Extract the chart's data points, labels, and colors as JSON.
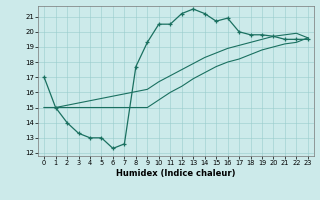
{
  "title": "",
  "xlabel": "Humidex (Indice chaleur)",
  "bg_color": "#cceaea",
  "line_color": "#1a7060",
  "xlim": [
    -0.5,
    23.5
  ],
  "ylim": [
    11.8,
    21.7
  ],
  "yticks": [
    12,
    13,
    14,
    15,
    16,
    17,
    18,
    19,
    20,
    21
  ],
  "xticks": [
    0,
    1,
    2,
    3,
    4,
    5,
    6,
    7,
    8,
    9,
    10,
    11,
    12,
    13,
    14,
    15,
    16,
    17,
    18,
    19,
    20,
    21,
    22,
    23
  ],
  "line1_x": [
    0,
    1,
    2,
    3,
    4,
    5,
    6,
    7,
    8,
    9,
    10,
    11,
    12,
    13,
    14,
    15,
    16,
    17,
    18,
    19,
    20,
    21,
    22,
    23
  ],
  "line1_y": [
    17.0,
    15.0,
    14.0,
    13.3,
    13.0,
    13.0,
    12.3,
    12.6,
    17.7,
    19.3,
    20.5,
    20.5,
    21.2,
    21.5,
    21.2,
    20.7,
    20.9,
    20.0,
    19.8,
    19.8,
    19.7,
    19.5,
    19.5,
    19.5
  ],
  "line2_x": [
    0,
    1,
    9,
    10,
    11,
    12,
    13,
    14,
    15,
    16,
    17,
    18,
    19,
    20,
    21,
    22,
    23
  ],
  "line2_y": [
    15.0,
    15.0,
    16.2,
    16.7,
    17.1,
    17.5,
    17.9,
    18.3,
    18.6,
    18.9,
    19.1,
    19.3,
    19.5,
    19.7,
    19.8,
    19.9,
    19.6
  ],
  "line3_x": [
    0,
    1,
    9,
    10,
    11,
    12,
    13,
    14,
    15,
    16,
    17,
    18,
    19,
    20,
    21,
    22,
    23
  ],
  "line3_y": [
    15.0,
    15.0,
    15.0,
    15.5,
    16.0,
    16.4,
    16.9,
    17.3,
    17.7,
    18.0,
    18.2,
    18.5,
    18.8,
    19.0,
    19.2,
    19.3,
    19.6
  ]
}
